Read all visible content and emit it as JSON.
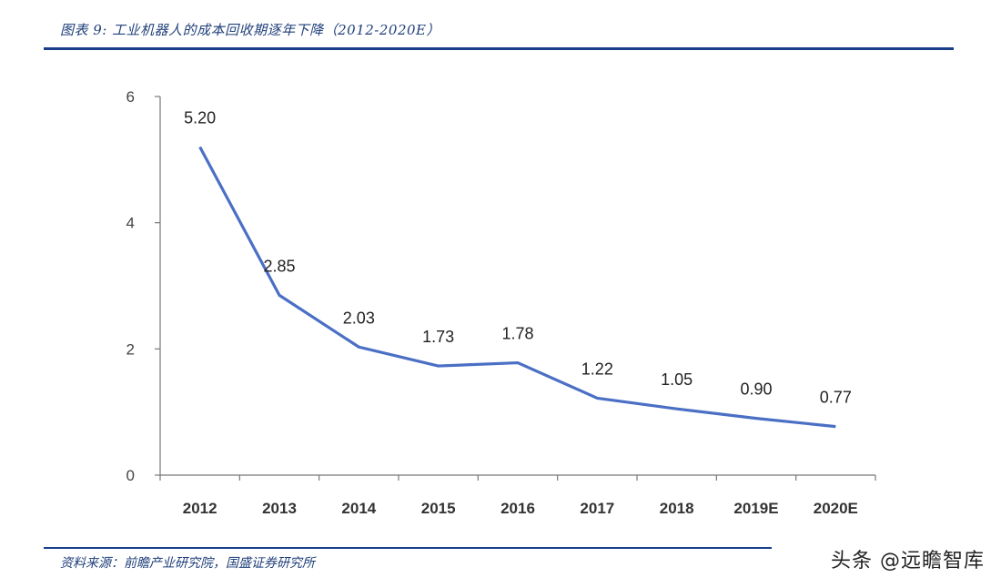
{
  "figure": {
    "title": "图表 9:  工业机器人的成本回收期逐年下降（2012-2020E）",
    "source": "资料来源：前瞻产业研究院，国盛证券研究所",
    "watermark": "头条 @远瞻智库"
  },
  "chart_data": {
    "type": "line",
    "categories": [
      "2012",
      "2013",
      "2014",
      "2015",
      "2016",
      "2017",
      "2018",
      "2019E",
      "2020E"
    ],
    "values": [
      5.2,
      2.85,
      2.03,
      1.73,
      1.78,
      1.22,
      1.05,
      0.9,
      0.77
    ],
    "data_labels": [
      "5.20",
      "2.85",
      "2.03",
      "1.73",
      "1.78",
      "1.22",
      "1.05",
      "0.90",
      "0.77"
    ],
    "y_ticks": [
      0,
      2,
      4,
      6
    ],
    "ylim": [
      0,
      6
    ],
    "grid": false,
    "legend": "none",
    "line_color": "#4a6fc4"
  }
}
